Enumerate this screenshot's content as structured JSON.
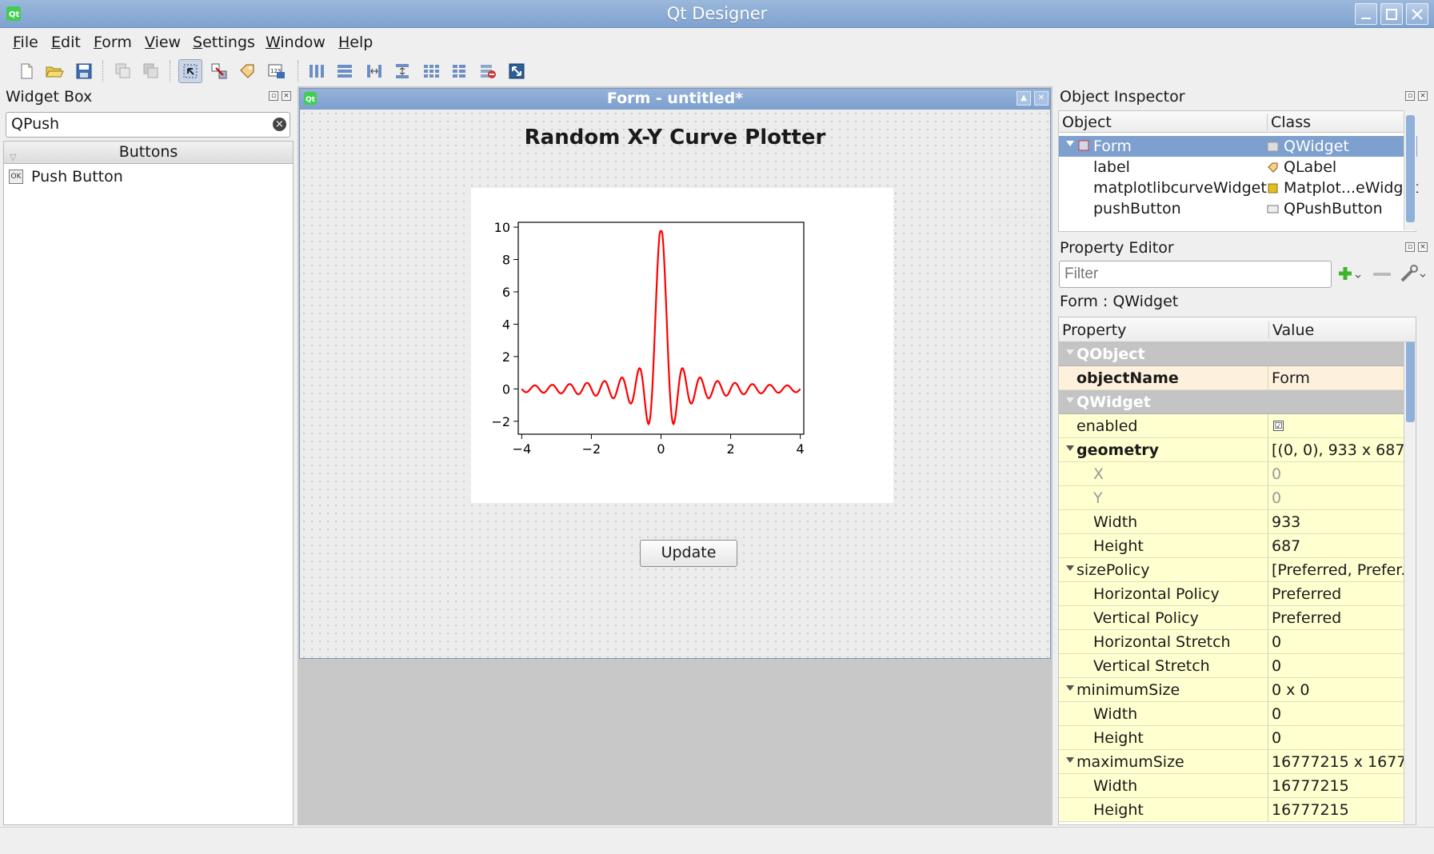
{
  "window": {
    "title": "Qt Designer"
  },
  "menu": [
    "File",
    "Edit",
    "Form",
    "View",
    "Settings",
    "Window",
    "Help"
  ],
  "widget_box": {
    "title": "Widget Box",
    "search_value": "QPush",
    "category": "Buttons",
    "items": [
      "Push Button"
    ]
  },
  "form": {
    "title": "Form - untitled*",
    "label_text": "Random X-Y Curve Plotter",
    "button_text": "Update"
  },
  "chart_data": {
    "type": "line",
    "title": "",
    "xlabel": "",
    "ylabel": "",
    "xlim": [
      -4.1,
      4.1
    ],
    "ylim": [
      -2.8,
      10.3
    ],
    "xticks": [
      "−4",
      "−2",
      "0",
      "2",
      "4"
    ],
    "yticks": [
      "−2",
      "0",
      "2",
      "4",
      "6",
      "8",
      "10"
    ],
    "series": [
      {
        "color": "#ff0000",
        "function_sample": "10*sin(4*pi*x)/(4*pi*x)",
        "x": [
          -4.0,
          -3.875,
          -3.75,
          -3.625,
          -3.5,
          -3.375,
          -3.25,
          -3.125,
          -3.0,
          -2.875,
          -2.75,
          -2.625,
          -2.5,
          -2.375,
          -2.25,
          -2.125,
          -2.0,
          -1.875,
          -1.75,
          -1.625,
          -1.5,
          -1.375,
          -1.25,
          -1.125,
          -1.0,
          -0.875,
          -0.75,
          -0.625,
          -0.5,
          -0.375,
          -0.25,
          -0.125,
          -0.05,
          0.0,
          0.05,
          0.125,
          0.25,
          0.375,
          0.5,
          0.625,
          0.75,
          0.875,
          1.0,
          1.125,
          1.25,
          1.375,
          1.5,
          1.625,
          1.75,
          1.875,
          2.0,
          2.125,
          2.25,
          2.375,
          2.5,
          2.625,
          2.75,
          2.875,
          3.0,
          3.125,
          3.25,
          3.375,
          3.5,
          3.625,
          3.75,
          3.875,
          4.0
        ],
        "y": [
          0.2,
          0.15,
          -0.25,
          -0.15,
          0.25,
          0.15,
          -0.3,
          -0.2,
          0.3,
          0.2,
          -0.35,
          -0.2,
          0.4,
          0.25,
          -0.45,
          -0.3,
          0.5,
          0.35,
          -0.6,
          -0.4,
          0.75,
          0.5,
          -0.95,
          -0.6,
          1.3,
          0.8,
          -1.9,
          -1.2,
          3.2,
          1.5,
          -2.1,
          6.0,
          9.0,
          9.7,
          9.0,
          6.0,
          -2.1,
          1.5,
          3.2,
          -1.2,
          -1.9,
          0.8,
          1.3,
          -0.6,
          -0.95,
          0.5,
          0.75,
          -0.4,
          -0.6,
          0.35,
          0.5,
          -0.3,
          -0.45,
          0.25,
          0.4,
          -0.2,
          -0.35,
          0.2,
          0.3,
          -0.2,
          -0.3,
          0.15,
          0.25,
          -0.15,
          -0.25,
          0.15,
          0.2
        ]
      }
    ]
  },
  "object_inspector": {
    "title": "Object Inspector",
    "headers": [
      "Object",
      "Class"
    ],
    "rows": [
      {
        "object": "Form",
        "class": "QWidget",
        "selected": true
      },
      {
        "object": "label",
        "class": "QLabel"
      },
      {
        "object": "matplotlibcurveWidget",
        "class": "Matplot...eWidget"
      },
      {
        "object": "pushButton",
        "class": "QPushButton"
      }
    ]
  },
  "property_editor": {
    "title": "Property Editor",
    "filter_placeholder": "Filter",
    "context": "Form : QWidget",
    "headers": [
      "Property",
      "Value"
    ],
    "rows": [
      {
        "name": "QObject",
        "value": "",
        "kind": "group"
      },
      {
        "name": "objectName",
        "value": "Form",
        "kind": "peach-bold"
      },
      {
        "name": "QWidget",
        "value": "",
        "kind": "group"
      },
      {
        "name": "enabled",
        "value": "☑",
        "kind": "check"
      },
      {
        "name": "geometry",
        "value": "[(0, 0), 933 x 687]",
        "kind": "bold-expand"
      },
      {
        "name": "X",
        "value": "0",
        "kind": "sub-dis"
      },
      {
        "name": "Y",
        "value": "0",
        "kind": "sub-dis"
      },
      {
        "name": "Width",
        "value": "933",
        "kind": "sub"
      },
      {
        "name": "Height",
        "value": "687",
        "kind": "sub"
      },
      {
        "name": "sizePolicy",
        "value": "[Preferred, Prefer...",
        "kind": "expand"
      },
      {
        "name": "Horizontal Policy",
        "value": "Preferred",
        "kind": "sub"
      },
      {
        "name": "Vertical Policy",
        "value": "Preferred",
        "kind": "sub"
      },
      {
        "name": "Horizontal Stretch",
        "value": "0",
        "kind": "sub"
      },
      {
        "name": "Vertical Stretch",
        "value": "0",
        "kind": "sub"
      },
      {
        "name": "minimumSize",
        "value": "0 x 0",
        "kind": "expand"
      },
      {
        "name": "Width",
        "value": "0",
        "kind": "sub"
      },
      {
        "name": "Height",
        "value": "0",
        "kind": "sub"
      },
      {
        "name": "maximumSize",
        "value": "16777215 x 16777...",
        "kind": "expand"
      },
      {
        "name": "Width",
        "value": "16777215",
        "kind": "sub"
      },
      {
        "name": "Height",
        "value": "16777215",
        "kind": "sub"
      }
    ]
  }
}
